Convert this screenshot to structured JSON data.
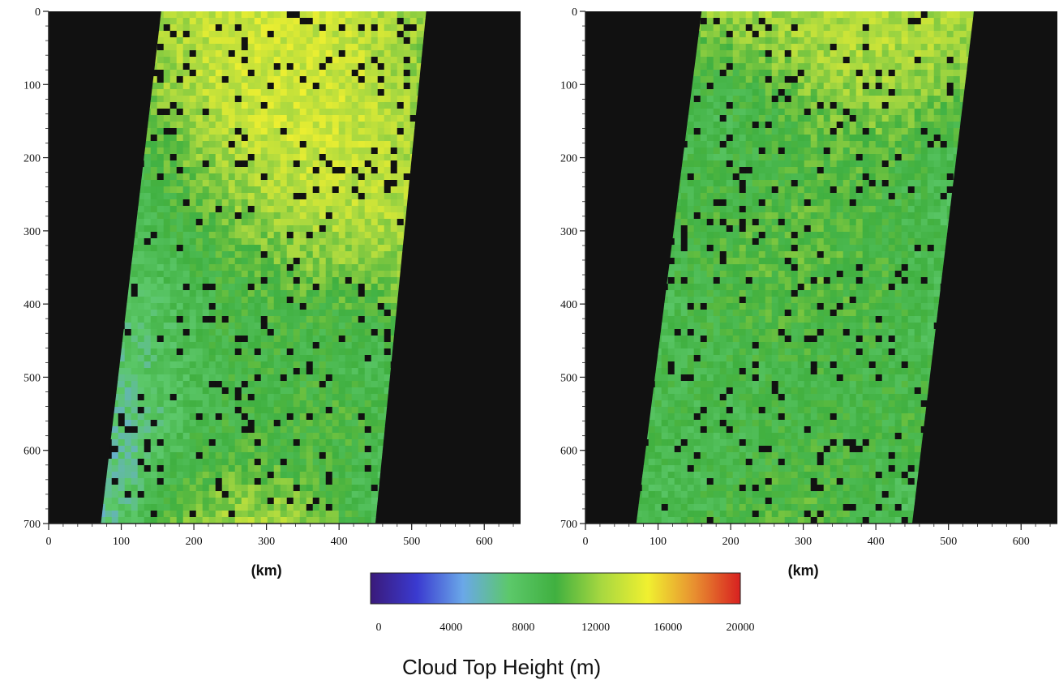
{
  "chart_data": [
    {
      "type": "heatmap",
      "title": "",
      "xlabel": "(km)",
      "ylabel": "",
      "xlim": [
        0,
        650
      ],
      "ylim": [
        700,
        0
      ],
      "x_ticks": [
        "0",
        "100",
        "200",
        "300",
        "400",
        "500",
        "600"
      ],
      "y_ticks": [
        "0",
        "100",
        "200",
        "300",
        "400",
        "500",
        "600",
        "700"
      ],
      "background_color": "#111111",
      "swath_corners_km": {
        "top_left": [
          155,
          0
        ],
        "top_right": [
          520,
          0
        ],
        "bottom_right": [
          450,
          700
        ],
        "bottom_left": [
          72,
          700
        ]
      }
    },
    {
      "type": "heatmap",
      "title": "",
      "xlabel": "(km)",
      "ylabel": "",
      "xlim": [
        0,
        650
      ],
      "ylim": [
        700,
        0
      ],
      "x_ticks": [
        "0",
        "100",
        "200",
        "300",
        "400",
        "500",
        "600"
      ],
      "y_ticks": [
        "0",
        "100",
        "200",
        "300",
        "400",
        "500",
        "600",
        "700"
      ],
      "background_color": "#111111",
      "swath_corners_km": {
        "top_left": [
          160,
          0
        ],
        "top_right": [
          535,
          0
        ],
        "bottom_right": [
          450,
          700
        ],
        "bottom_left": [
          70,
          700
        ]
      }
    }
  ],
  "colorbar": {
    "title": "Cloud Top Height (m)",
    "min": 0,
    "max": 20000,
    "ticks": [
      "0",
      "4000",
      "8000",
      "12000",
      "16000",
      "20000"
    ],
    "stops": [
      "#3a1a7a",
      "#3a3ad0",
      "#6aa8e8",
      "#5cc86a",
      "#40b040",
      "#a8d840",
      "#f0f030",
      "#e89030",
      "#d82020"
    ]
  }
}
